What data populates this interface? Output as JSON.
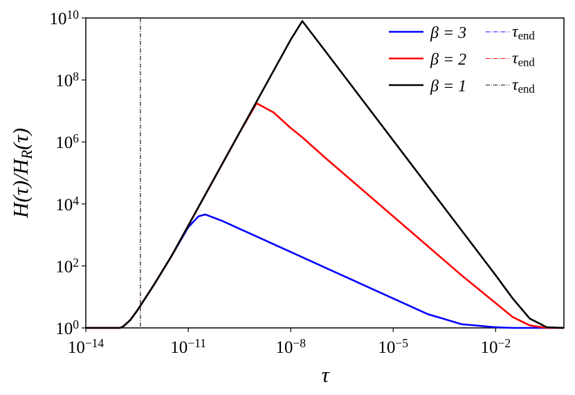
{
  "chart_data": {
    "type": "line",
    "xlabel": "τ",
    "ylabel": "H(τ)/H_{R}(τ)",
    "log_x": true,
    "log_y": true,
    "xlim": [
      1e-14,
      1
    ],
    "ylim": [
      1,
      10000000000.0
    ],
    "xticks": [
      {
        "value": 1e-14,
        "label": "10^{−14}"
      },
      {
        "value": 1e-11,
        "label": "10^{−11}"
      },
      {
        "value": 1e-08,
        "label": "10^{−8}"
      },
      {
        "value": 1e-05,
        "label": "10^{−5}"
      },
      {
        "value": 0.01,
        "label": "10^{−2}"
      }
    ],
    "yticks": [
      {
        "value": 1,
        "label": "10^{0}"
      },
      {
        "value": 100,
        "label": "10^{2}"
      },
      {
        "value": 10000,
        "label": "10^{4}"
      },
      {
        "value": 1000000,
        "label": "10^{6}"
      },
      {
        "value": 100000000,
        "label": "10^{8}"
      },
      {
        "value": 10000000000,
        "label": "10^{10}"
      }
    ],
    "legend": "upper right",
    "x": [
      1e-14,
      1e-13,
      1.259e-13,
      1.995e-13,
      3.162e-13,
      1e-12,
      3.162e-12,
      1e-11,
      1.995e-11,
      3.162e-11,
      1e-10,
      3.162e-10,
      1e-09,
      3.162e-09,
      1e-08,
      2.188e-08,
      1e-07,
      1e-06,
      1e-05,
      0.0001,
      0.001,
      0.01,
      0.03162,
      0.1,
      0.3162,
      1
    ],
    "series": [
      {
        "name": "β = 3",
        "color": "#0000ff",
        "end_label": "τ_{end}",
        "end_x": 3.98e-13,
        "values": [
          1,
          1,
          1.122,
          1.778,
          3.548,
          25.12,
          199.5,
          1778,
          3981,
          4571,
          2818,
          1585,
          891.3,
          501.2,
          281.8,
          190.5,
          89.13,
          28.18,
          8.913,
          2.818,
          1.318,
          1.047,
          1,
          1,
          1,
          1
        ]
      },
      {
        "name": "β = 2",
        "color": "#ff0000",
        "end_label": "τ_{end}",
        "end_x": 3.98e-13,
        "values": [
          1,
          1,
          1.122,
          1.778,
          3.548,
          25.12,
          199.5,
          1995,
          7943,
          19950,
          199500,
          1995000,
          17780000,
          8913000,
          2818000,
          1413000,
          316200,
          35480,
          3981,
          446.7,
          50.12,
          6.31,
          2.239,
          1.202,
          1,
          1
        ]
      },
      {
        "name": "β = 1",
        "color": "#000000",
        "end_label": "τ_{end}",
        "end_x": 3.98e-13,
        "values": [
          1,
          1,
          1.122,
          1.778,
          3.548,
          25.12,
          199.5,
          1995,
          7943,
          19950,
          199500,
          1995000,
          19950000,
          199500000,
          1995000000,
          7943000000,
          891300000,
          31620000,
          1122000,
          39810,
          1413,
          50.12,
          8.913,
          1.995,
          1.047,
          1
        ]
      }
    ]
  }
}
